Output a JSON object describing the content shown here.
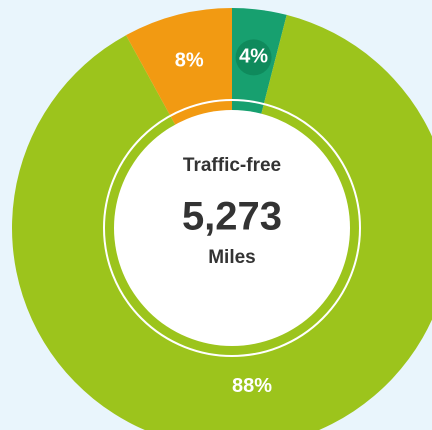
{
  "chart_data": {
    "type": "donut",
    "values": [
      4,
      88,
      8
    ],
    "value_labels": [
      "4%",
      "88%",
      "8%"
    ],
    "colors": [
      "#17a06f",
      "#9cc41c",
      "#f29a12"
    ],
    "center_title": "Traffic-free",
    "center_value": "5,273",
    "center_unit": "Miles"
  }
}
